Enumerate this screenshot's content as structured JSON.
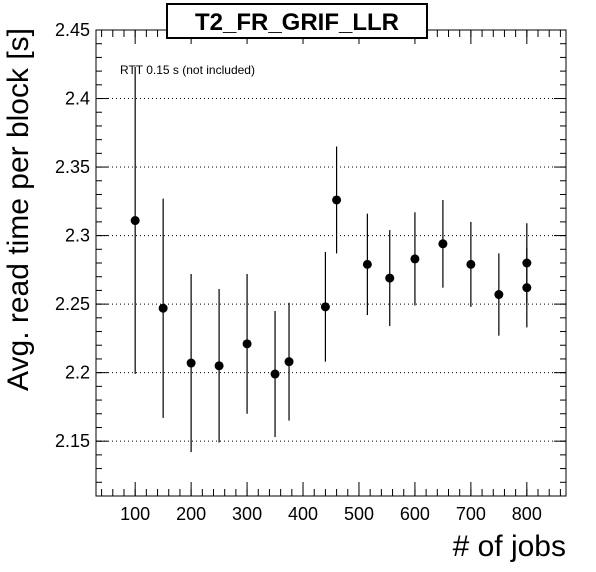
{
  "chart_data": {
    "type": "scatter",
    "title": "T2_FR_GRIF_LLR",
    "xlabel": "# of jobs",
    "ylabel": "Avg. read time per block [s]",
    "annotation": "RTT 0.15 s (not included)",
    "xlim": [
      30,
      870
    ],
    "ylim": [
      2.11,
      2.45
    ],
    "xticks": [
      100,
      200,
      300,
      400,
      500,
      600,
      700,
      800
    ],
    "xtick_labels": [
      "100",
      "200",
      "300",
      "400",
      "500",
      "600",
      "700",
      "800"
    ],
    "yticks": [
      2.15,
      2.2,
      2.25,
      2.3,
      2.35,
      2.4,
      2.45
    ],
    "ytick_labels": [
      "2.15",
      "2.2",
      "2.25",
      "2.3",
      "2.35",
      "2.4",
      "2.45"
    ],
    "grid": "horizontal dotted",
    "legend": "none",
    "series": [
      {
        "points": [
          {
            "x": 100,
            "y": 2.311,
            "err": 0.112
          },
          {
            "x": 150,
            "y": 2.247,
            "err": 0.08
          },
          {
            "x": 200,
            "y": 2.207,
            "err": 0.065
          },
          {
            "x": 250,
            "y": 2.205,
            "err": 0.056
          },
          {
            "x": 300,
            "y": 2.221,
            "err": 0.051
          },
          {
            "x": 350,
            "y": 2.199,
            "err": 0.046
          },
          {
            "x": 375,
            "y": 2.208,
            "err": 0.043
          },
          {
            "x": 440,
            "y": 2.248,
            "err": 0.04
          },
          {
            "x": 460,
            "y": 2.326,
            "err": 0.039
          },
          {
            "x": 515,
            "y": 2.279,
            "err": 0.037
          },
          {
            "x": 555,
            "y": 2.269,
            "err": 0.035
          },
          {
            "x": 600,
            "y": 2.283,
            "err": 0.034
          },
          {
            "x": 650,
            "y": 2.294,
            "err": 0.032
          },
          {
            "x": 700,
            "y": 2.279,
            "err": 0.031
          },
          {
            "x": 750,
            "y": 2.257,
            "err": 0.03
          },
          {
            "x": 800,
            "y": 2.28,
            "err": 0.029
          },
          {
            "x": 800,
            "y": 2.262,
            "err": 0.029
          }
        ]
      }
    ]
  }
}
